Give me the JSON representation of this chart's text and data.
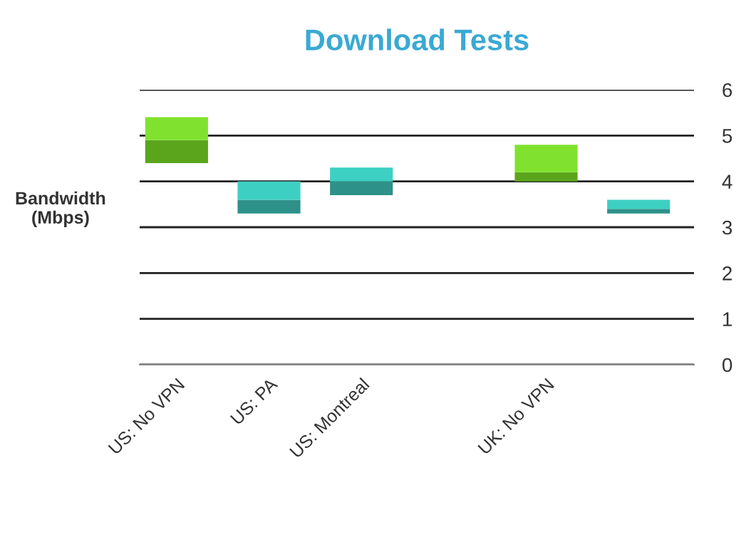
{
  "chart_data": {
    "type": "bar",
    "title": "Download Tests",
    "ylabel": "Bandwidth\n(Mbps)",
    "categories": [
      "US: No VPN",
      "US: PA",
      "US: Montreal",
      null,
      "UK: No VPN",
      null
    ],
    "series": [
      {
        "colors": [
          "#5ba51c",
          "#2e9189",
          "#2e9189",
          null,
          "#5ba51c",
          "#2e9189"
        ],
        "base": [
          4.4,
          3.3,
          3.7,
          null,
          4.0,
          3.3
        ],
        "values": [
          0.5,
          0.3,
          0.3,
          null,
          0.2,
          0.1
        ]
      },
      {
        "colors": [
          "#80e22e",
          "#3dd0c2",
          "#3dd0c2",
          null,
          "#80e22e",
          "#3dd0c2"
        ],
        "base": [
          4.9,
          3.6,
          4.0,
          null,
          4.2,
          3.4
        ],
        "values": [
          0.5,
          0.4,
          0.3,
          null,
          0.6,
          0.2
        ]
      }
    ],
    "ylim": [
      0,
      6
    ],
    "yticks": [
      0,
      1,
      2,
      3,
      4,
      5,
      6
    ],
    "grid": "y",
    "legend": false
  }
}
